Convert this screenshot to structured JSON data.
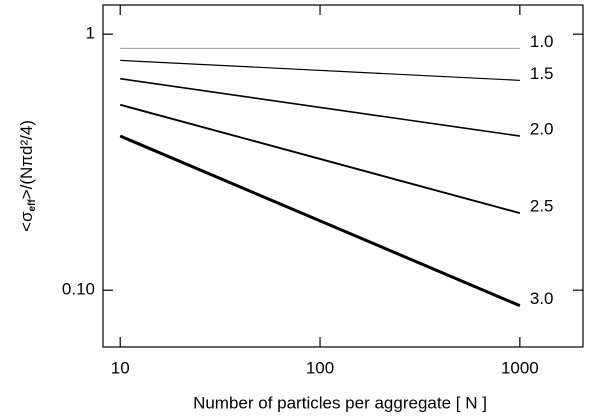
{
  "chart_data": {
    "type": "line",
    "log_x": true,
    "log_y": true,
    "xlabel": "Number of particles per aggregate [ N ]",
    "ylabel": [
      "<σ",
      "eff",
      ">/(Nπd²/4)"
    ],
    "x": [
      10,
      1000
    ],
    "series": [
      {
        "name": "1.0",
        "color": "#999999",
        "line_width": 1,
        "values": [
          0.88,
          0.88
        ]
      },
      {
        "name": "1.5",
        "color": "#000000",
        "line_width": 1.2,
        "values": [
          0.79,
          0.66
        ]
      },
      {
        "name": "2.0",
        "color": "#000000",
        "line_width": 1.6,
        "values": [
          0.67,
          0.4
        ]
      },
      {
        "name": "2.5",
        "color": "#000000",
        "line_width": 1.9,
        "values": [
          0.53,
          0.2
        ]
      },
      {
        "name": "3.0",
        "color": "#000000",
        "line_width": 3,
        "values": [
          0.4,
          0.087
        ]
      }
    ],
    "xlim": [
      8.2,
      2070
    ],
    "ylim": [
      0.06,
      1.3
    ],
    "xticks": [
      10,
      100,
      1000
    ],
    "yticks": [
      1,
      {
        "value": 0.1,
        "label": "0.10"
      }
    ]
  }
}
